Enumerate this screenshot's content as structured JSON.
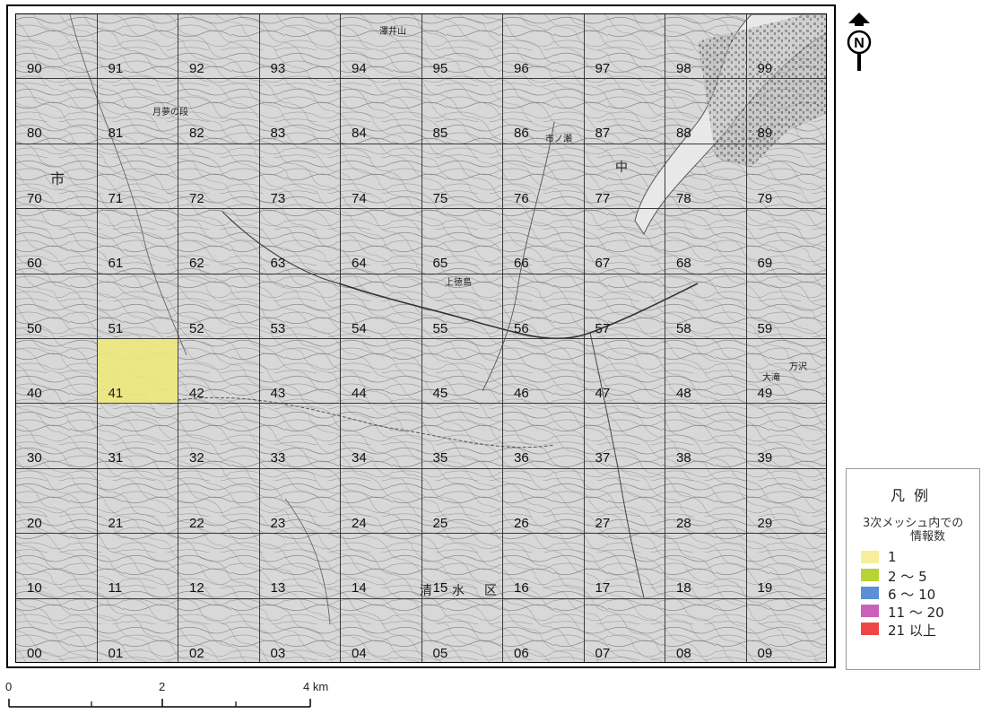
{
  "mesh": {
    "rows": [
      [
        "90",
        "91",
        "92",
        "93",
        "94",
        "95",
        "96",
        "97",
        "98",
        "99"
      ],
      [
        "80",
        "81",
        "82",
        "83",
        "84",
        "85",
        "86",
        "87",
        "88",
        "89"
      ],
      [
        "70",
        "71",
        "72",
        "73",
        "74",
        "75",
        "76",
        "77",
        "78",
        "79"
      ],
      [
        "60",
        "61",
        "62",
        "63",
        "64",
        "65",
        "66",
        "67",
        "68",
        "69"
      ],
      [
        "50",
        "51",
        "52",
        "53",
        "54",
        "55",
        "56",
        "57",
        "58",
        "59"
      ],
      [
        "40",
        "41",
        "42",
        "43",
        "44",
        "45",
        "46",
        "47",
        "48",
        "49"
      ],
      [
        "30",
        "31",
        "32",
        "33",
        "34",
        "35",
        "36",
        "37",
        "38",
        "39"
      ],
      [
        "20",
        "21",
        "22",
        "23",
        "24",
        "25",
        "26",
        "27",
        "28",
        "29"
      ],
      [
        "10",
        "11",
        "12",
        "13",
        "14",
        "15",
        "16",
        "17",
        "18",
        "19"
      ],
      [
        "00",
        "01",
        "02",
        "03",
        "04",
        "05",
        "06",
        "07",
        "08",
        "09"
      ]
    ],
    "highlighted": [
      {
        "code": "41",
        "class": "1",
        "color": "#eee97f"
      }
    ]
  },
  "places": {
    "tsuki": "月夢の段",
    "ichi": "市",
    "chu": "中",
    "ichinose": "市ノ瀬",
    "kamisato": "上徳島",
    "shimizu": "清　水　区",
    "sawai": "澤井山",
    "taki": "大滝",
    "man": "万沢"
  },
  "legend": {
    "title": "凡例",
    "subtitle_line1": "3次メッシュ内での",
    "subtitle_line2": "情報数",
    "items": [
      {
        "label": "1",
        "color": "#f7ef9a"
      },
      {
        "label": "2 ～ 5",
        "color": "#b7d335"
      },
      {
        "label": "6 ～ 10",
        "color": "#5b8fd6"
      },
      {
        "label": "11 ～ 20",
        "color": "#cc5fb9"
      },
      {
        "label": "21 以上",
        "color": "#ee4646"
      }
    ]
  },
  "north": {
    "letter": "N"
  },
  "scale": {
    "labels": [
      "0",
      "2",
      "4 km"
    ]
  }
}
